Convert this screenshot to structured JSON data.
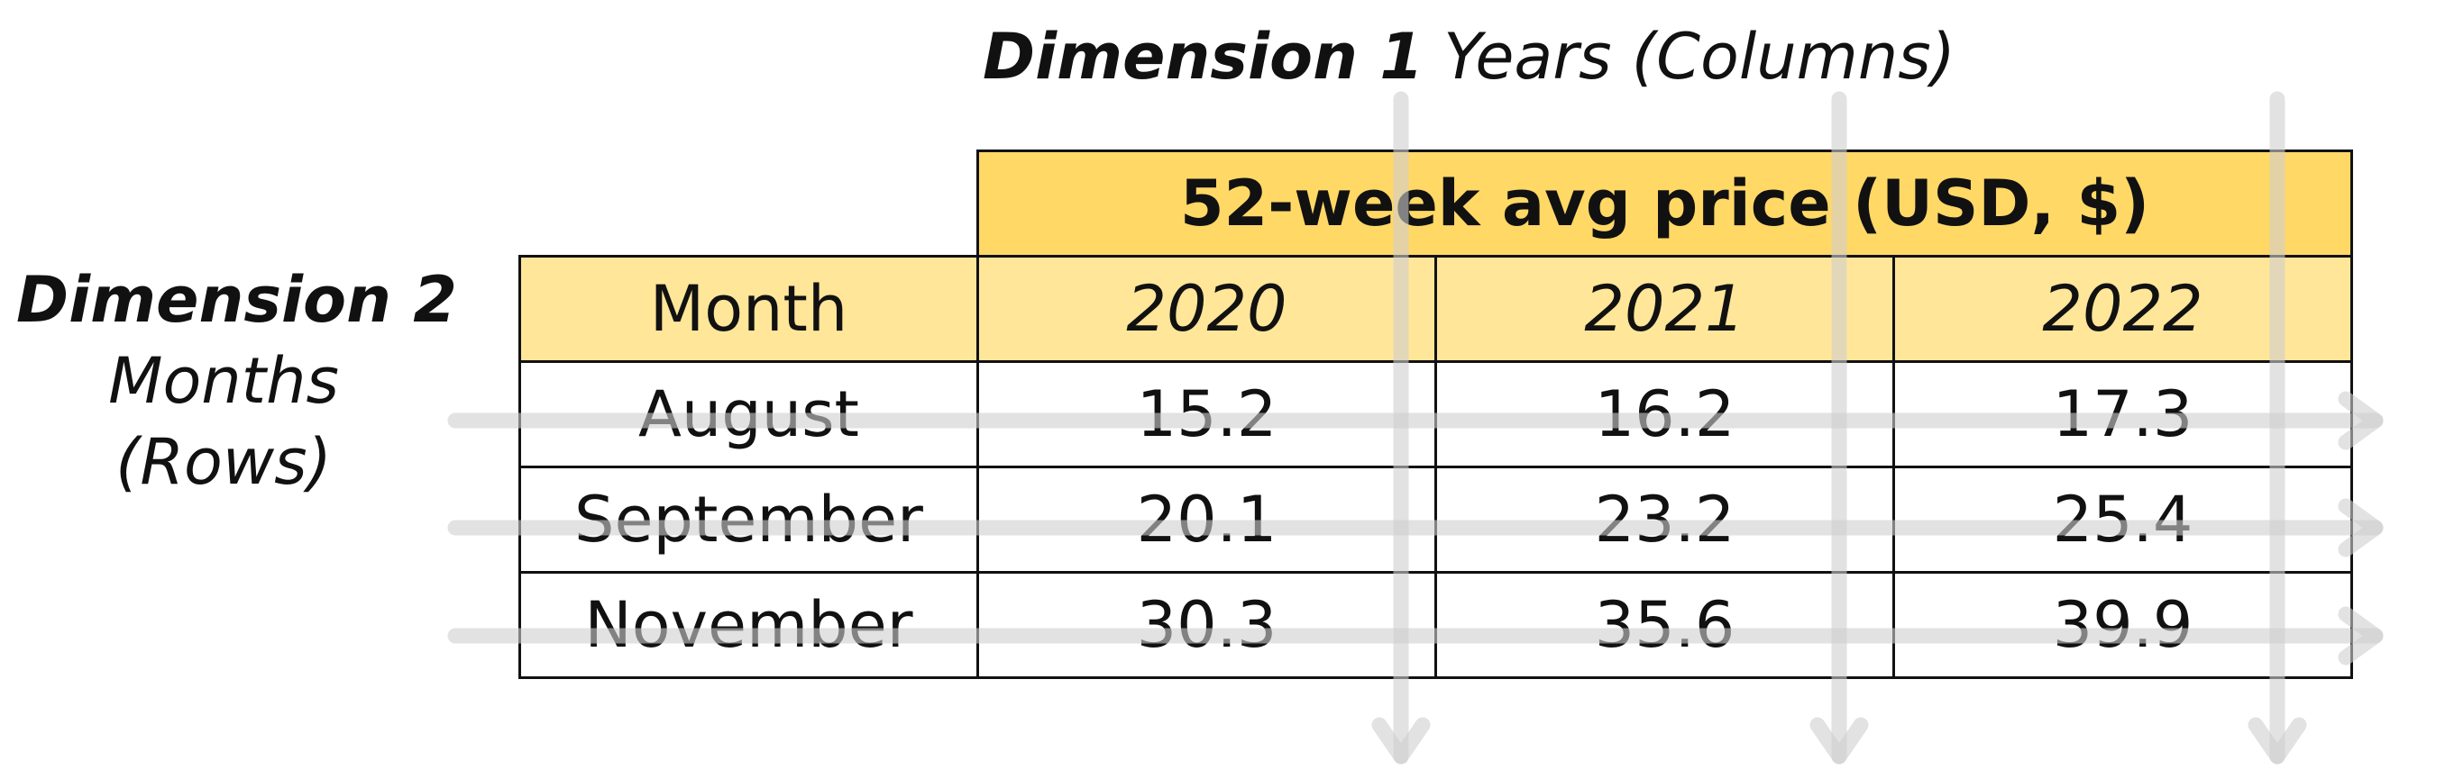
{
  "dimension1": {
    "label": "Dimension 1",
    "description": "Years (Columns)"
  },
  "dimension2": {
    "label": "Dimension 2",
    "line1": "Months",
    "line2": "(Rows)"
  },
  "table": {
    "header": "52-week avg price (USD, $)",
    "row_header_label": "Month",
    "columns": [
      "2020",
      "2021",
      "2022"
    ],
    "rows": [
      {
        "month": "August",
        "values": [
          "15.2",
          "16.2",
          "17.3"
        ]
      },
      {
        "month": "September",
        "values": [
          "20.1",
          "23.2",
          "25.4"
        ]
      },
      {
        "month": "November",
        "values": [
          "30.3",
          "35.6",
          "39.9"
        ]
      }
    ]
  },
  "colors": {
    "header_fill": "#ffd866",
    "subheader_fill": "#ffe699",
    "arrow": "#d6d6d6",
    "border": "#111111"
  }
}
